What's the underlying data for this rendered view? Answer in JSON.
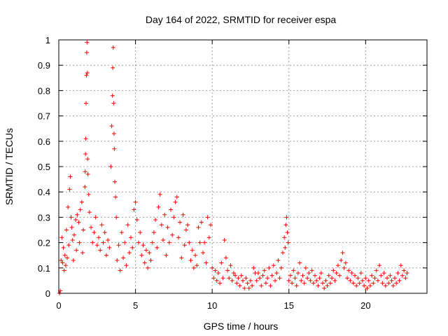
{
  "chart_data": {
    "type": "scatter",
    "title": "Day 164 of 2022, SRMTID for receiver espa",
    "xlabel": "GPS time / hours",
    "ylabel": "SRMTID / TECUs",
    "xlim": [
      0,
      24
    ],
    "ylim": [
      0,
      1
    ],
    "x_ticks": [
      0,
      5,
      10,
      15,
      20
    ],
    "x_tick_labels": [
      "0",
      "5",
      "10",
      "15",
      "20"
    ],
    "y_ticks": [
      0,
      0.1,
      0.2,
      0.3,
      0.4,
      0.5,
      0.6,
      0.7,
      0.8,
      0.9,
      1
    ],
    "y_tick_labels": [
      "0",
      "0.1",
      "0.2",
      "0.3",
      "0.4",
      "0.5",
      "0.6",
      "0.7",
      "0.8",
      "0.9",
      "1"
    ],
    "grid": true,
    "marker": "+",
    "color": "#ff0000",
    "series": [
      {
        "name": "espa",
        "points": [
          [
            0.05,
            0.0
          ],
          [
            0.1,
            0.01
          ],
          [
            0.15,
            0.13
          ],
          [
            0.2,
            0.22
          ],
          [
            0.25,
            0.12
          ],
          [
            0.3,
            0.18
          ],
          [
            0.35,
            0.09
          ],
          [
            0.4,
            0.15
          ],
          [
            0.45,
            0.11
          ],
          [
            0.5,
            0.25
          ],
          [
            0.55,
            0.14
          ],
          [
            0.6,
            0.34
          ],
          [
            0.65,
            0.19
          ],
          [
            0.7,
            0.41
          ],
          [
            0.75,
            0.46
          ],
          [
            0.8,
            0.3
          ],
          [
            0.85,
            0.26
          ],
          [
            0.9,
            0.21
          ],
          [
            0.95,
            0.13
          ],
          [
            1.0,
            0.23
          ],
          [
            1.1,
            0.29
          ],
          [
            1.15,
            0.17
          ],
          [
            1.2,
            0.31
          ],
          [
            1.3,
            0.28
          ],
          [
            1.35,
            0.2
          ],
          [
            1.4,
            0.33
          ],
          [
            1.5,
            0.36
          ],
          [
            1.55,
            0.16
          ],
          [
            1.6,
            0.25
          ],
          [
            1.7,
            0.42
          ],
          [
            1.72,
            0.48
          ],
          [
            1.74,
            0.55
          ],
          [
            1.76,
            0.61
          ],
          [
            1.78,
            0.75
          ],
          [
            1.8,
            0.86
          ],
          [
            1.82,
            0.95
          ],
          [
            1.84,
            0.99
          ],
          [
            1.86,
            0.87
          ],
          [
            1.88,
            0.53
          ],
          [
            1.9,
            0.47
          ],
          [
            1.95,
            0.39
          ],
          [
            2.0,
            0.32
          ],
          [
            2.1,
            0.26
          ],
          [
            2.2,
            0.2
          ],
          [
            2.3,
            0.24
          ],
          [
            2.4,
            0.3
          ],
          [
            2.5,
            0.19
          ],
          [
            2.6,
            0.22
          ],
          [
            2.7,
            0.17
          ],
          [
            2.8,
            0.27
          ],
          [
            2.9,
            0.2
          ],
          [
            3.0,
            0.24
          ],
          [
            3.1,
            0.15
          ],
          [
            3.2,
            0.21
          ],
          [
            3.3,
            0.18
          ],
          [
            3.4,
            0.5
          ],
          [
            3.45,
            0.66
          ],
          [
            3.5,
            0.78
          ],
          [
            3.52,
            0.89
          ],
          [
            3.55,
            0.97
          ],
          [
            3.58,
            0.75
          ],
          [
            3.6,
            0.63
          ],
          [
            3.62,
            0.57
          ],
          [
            3.65,
            0.44
          ],
          [
            3.7,
            0.38
          ],
          [
            3.75,
            0.3
          ],
          [
            3.8,
            0.13
          ],
          [
            3.9,
            0.19
          ],
          [
            4.0,
            0.09
          ],
          [
            4.1,
            0.24
          ],
          [
            4.2,
            0.14
          ],
          [
            4.3,
            0.2
          ],
          [
            4.4,
            0.11
          ],
          [
            4.5,
            0.27
          ],
          [
            4.6,
            0.16
          ],
          [
            4.7,
            0.22
          ],
          [
            4.8,
            0.18
          ],
          [
            4.9,
            0.33
          ],
          [
            5.0,
            0.36
          ],
          [
            5.1,
            0.29
          ],
          [
            5.2,
            0.2
          ],
          [
            5.3,
            0.24
          ],
          [
            5.4,
            0.15
          ],
          [
            5.5,
            0.19
          ],
          [
            5.6,
            0.12
          ],
          [
            5.7,
            0.17
          ],
          [
            5.8,
            0.1
          ],
          [
            5.9,
            0.16
          ],
          [
            6.0,
            0.13
          ],
          [
            6.1,
            0.2
          ],
          [
            6.2,
            0.24
          ],
          [
            6.3,
            0.29
          ],
          [
            6.4,
            0.18
          ],
          [
            6.5,
            0.34
          ],
          [
            6.6,
            0.39
          ],
          [
            6.7,
            0.27
          ],
          [
            6.8,
            0.21
          ],
          [
            6.9,
            0.31
          ],
          [
            7.0,
            0.15
          ],
          [
            7.1,
            0.26
          ],
          [
            7.2,
            0.2
          ],
          [
            7.3,
            0.33
          ],
          [
            7.4,
            0.23
          ],
          [
            7.5,
            0.3
          ],
          [
            7.6,
            0.36
          ],
          [
            7.7,
            0.38
          ],
          [
            7.8,
            0.22
          ],
          [
            7.9,
            0.28
          ],
          [
            8.0,
            0.14
          ],
          [
            8.1,
            0.31
          ],
          [
            8.2,
            0.19
          ],
          [
            8.3,
            0.25
          ],
          [
            8.4,
            0.27
          ],
          [
            8.5,
            0.2
          ],
          [
            8.6,
            0.13
          ],
          [
            8.7,
            0.17
          ],
          [
            8.8,
            0.1
          ],
          [
            8.9,
            0.15
          ],
          [
            9.0,
            0.11
          ],
          [
            9.1,
            0.26
          ],
          [
            9.2,
            0.2
          ],
          [
            9.3,
            0.28
          ],
          [
            9.4,
            0.16
          ],
          [
            9.5,
            0.2
          ],
          [
            9.6,
            0.12
          ],
          [
            9.7,
            0.3
          ],
          [
            9.8,
            0.22
          ],
          [
            9.9,
            0.27
          ],
          [
            10.0,
            0.1
          ],
          [
            10.1,
            0.06
          ],
          [
            10.2,
            0.09
          ],
          [
            10.3,
            0.05
          ],
          [
            10.4,
            0.08
          ],
          [
            10.5,
            0.04
          ],
          [
            10.6,
            0.12
          ],
          [
            10.7,
            0.06
          ],
          [
            10.8,
            0.21
          ],
          [
            10.9,
            0.14
          ],
          [
            11.0,
            0.09
          ],
          [
            11.1,
            0.06
          ],
          [
            11.2,
            0.11
          ],
          [
            11.3,
            0.05
          ],
          [
            11.4,
            0.08
          ],
          [
            11.5,
            0.07
          ],
          [
            11.6,
            0.04
          ],
          [
            11.7,
            0.06
          ],
          [
            11.8,
            0.03
          ],
          [
            11.9,
            0.07
          ],
          [
            12.0,
            0.05
          ],
          [
            12.1,
            0.02
          ],
          [
            12.2,
            0.06
          ],
          [
            12.3,
            0.04
          ],
          [
            12.4,
            0.02
          ],
          [
            12.5,
            0.05
          ],
          [
            12.6,
            0.03
          ],
          [
            12.7,
            0.1
          ],
          [
            12.8,
            0.08
          ],
          [
            12.9,
            0.05
          ],
          [
            13.0,
            0.08
          ],
          [
            13.1,
            0.06
          ],
          [
            13.2,
            0.03
          ],
          [
            13.3,
            0.07
          ],
          [
            13.4,
            0.09
          ],
          [
            13.5,
            0.04
          ],
          [
            13.6,
            0.06
          ],
          [
            13.7,
            0.1
          ],
          [
            13.8,
            0.03
          ],
          [
            13.9,
            0.07
          ],
          [
            14.0,
            0.11
          ],
          [
            14.1,
            0.05
          ],
          [
            14.2,
            0.08
          ],
          [
            14.3,
            0.13
          ],
          [
            14.4,
            0.06
          ],
          [
            14.5,
            0.1
          ],
          [
            14.6,
            0.16
          ],
          [
            14.7,
            0.22
          ],
          [
            14.75,
            0.18
          ],
          [
            14.8,
            0.27
          ],
          [
            14.85,
            0.3
          ],
          [
            14.9,
            0.24
          ],
          [
            14.95,
            0.2
          ],
          [
            15.0,
            0.05
          ],
          [
            15.1,
            0.07
          ],
          [
            15.2,
            0.04
          ],
          [
            15.3,
            0.09
          ],
          [
            15.4,
            0.06
          ],
          [
            15.5,
            0.03
          ],
          [
            15.6,
            0.08
          ],
          [
            15.7,
            0.12
          ],
          [
            15.8,
            0.05
          ],
          [
            15.9,
            0.07
          ],
          [
            16.0,
            0.04
          ],
          [
            16.1,
            0.1
          ],
          [
            16.2,
            0.06
          ],
          [
            16.3,
            0.08
          ],
          [
            16.4,
            0.05
          ],
          [
            16.5,
            0.09
          ],
          [
            16.6,
            0.04
          ],
          [
            16.7,
            0.07
          ],
          [
            16.8,
            0.05
          ],
          [
            16.9,
            0.03
          ],
          [
            17.0,
            0.06
          ],
          [
            17.1,
            0.08
          ],
          [
            17.2,
            0.04
          ],
          [
            17.3,
            0.02
          ],
          [
            17.4,
            0.05
          ],
          [
            17.5,
            0.03
          ],
          [
            17.6,
            0.07
          ],
          [
            17.7,
            0.04
          ],
          [
            17.8,
            0.06
          ],
          [
            17.9,
            0.09
          ],
          [
            18.0,
            0.05
          ],
          [
            18.1,
            0.08
          ],
          [
            18.2,
            0.11
          ],
          [
            18.3,
            0.07
          ],
          [
            18.4,
            0.13
          ],
          [
            18.5,
            0.16
          ],
          [
            18.6,
            0.1
          ],
          [
            18.7,
            0.12
          ],
          [
            18.8,
            0.06
          ],
          [
            18.9,
            0.09
          ],
          [
            19.0,
            0.05
          ],
          [
            19.1,
            0.08
          ],
          [
            19.2,
            0.04
          ],
          [
            19.3,
            0.07
          ],
          [
            19.4,
            0.03
          ],
          [
            19.5,
            0.06
          ],
          [
            19.6,
            0.04
          ],
          [
            19.7,
            0.08
          ],
          [
            19.8,
            0.05
          ],
          [
            19.9,
            0.03
          ],
          [
            20.0,
            0.06
          ],
          [
            20.1,
            0.02
          ],
          [
            20.2,
            0.05
          ],
          [
            20.3,
            0.03
          ],
          [
            20.4,
            0.07
          ],
          [
            20.5,
            0.04
          ],
          [
            20.6,
            0.06
          ],
          [
            20.7,
            0.09
          ],
          [
            20.8,
            0.05
          ],
          [
            20.9,
            0.11
          ],
          [
            21.0,
            0.07
          ],
          [
            21.1,
            0.04
          ],
          [
            21.2,
            0.08
          ],
          [
            21.3,
            0.03
          ],
          [
            21.4,
            0.06
          ],
          [
            21.5,
            0.04
          ],
          [
            21.6,
            0.07
          ],
          [
            21.7,
            0.05
          ],
          [
            21.8,
            0.03
          ],
          [
            21.9,
            0.06
          ],
          [
            22.0,
            0.04
          ],
          [
            22.1,
            0.08
          ],
          [
            22.2,
            0.05
          ],
          [
            22.3,
            0.11
          ],
          [
            22.4,
            0.07
          ],
          [
            22.5,
            0.09
          ],
          [
            22.6,
            0.06
          ],
          [
            22.7,
            0.08
          ]
        ]
      }
    ]
  }
}
